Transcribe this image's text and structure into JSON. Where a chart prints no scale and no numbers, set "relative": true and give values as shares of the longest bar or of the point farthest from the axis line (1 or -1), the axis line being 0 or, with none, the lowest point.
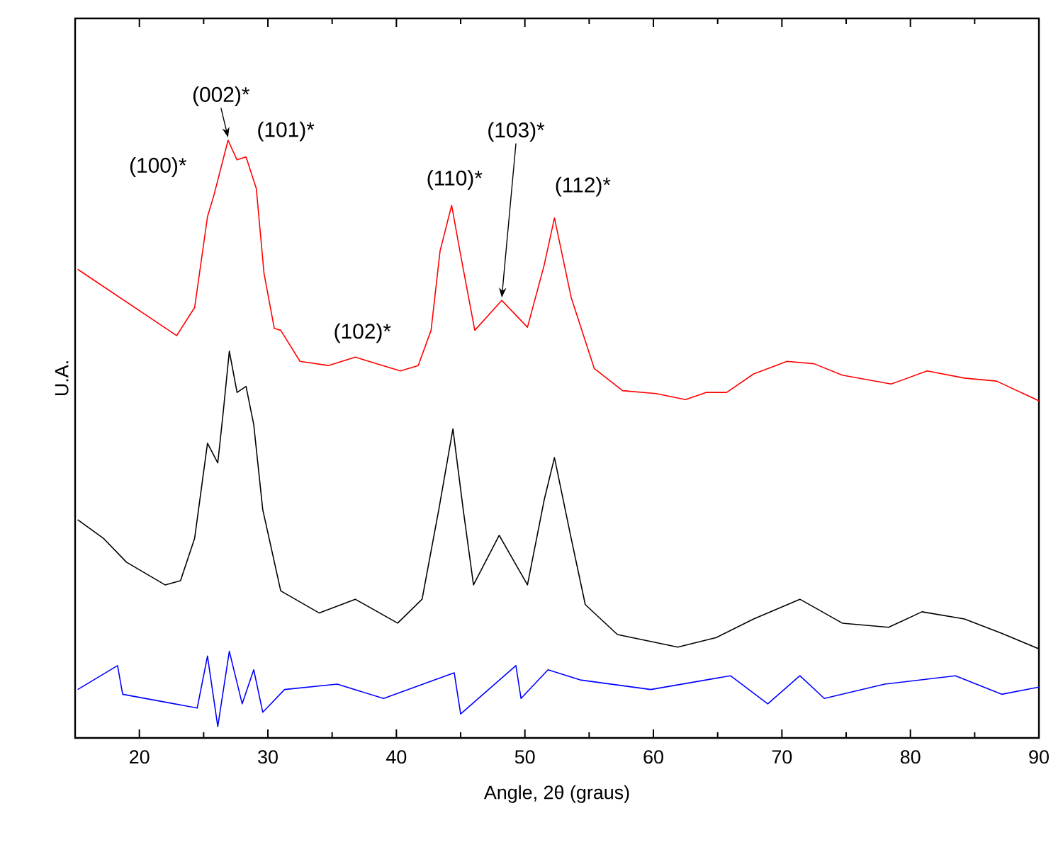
{
  "chart_data": {
    "type": "line",
    "relative": true,
    "xlabel": "Angle, 2θ (graus)",
    "ylabel": "U.A.",
    "xlim": [
      15,
      90
    ],
    "xticks": [
      20,
      30,
      40,
      50,
      60,
      70,
      80,
      90
    ],
    "series": [
      {
        "color": "#ff0000",
        "x": [
          15.2,
          22.9,
          24.3,
          25.3,
          25.8,
          26.9,
          27.6,
          28.3,
          29.1,
          29.7,
          30.5,
          31.0,
          32.5,
          34.7,
          36.8,
          40.3,
          41.7,
          42.7,
          43.4,
          44.3,
          45.0,
          46.1,
          48.2,
          50.2,
          51.5,
          52.3,
          53.6,
          55.4,
          57.6,
          60.2,
          62.5,
          64.1,
          65.7,
          67.8,
          70.4,
          72.5,
          74.7,
          78.5,
          81.3,
          84.2,
          86.7,
          90.0
        ],
        "values": [
          0.784,
          0.673,
          0.72,
          0.872,
          0.908,
          1.0,
          0.967,
          0.972,
          0.919,
          0.777,
          0.685,
          0.682,
          0.63,
          0.623,
          0.637,
          0.614,
          0.623,
          0.682,
          0.815,
          0.891,
          0.808,
          0.682,
          0.732,
          0.687,
          0.791,
          0.87,
          0.737,
          0.618,
          0.581,
          0.576,
          0.566,
          0.578,
          0.578,
          0.609,
          0.63,
          0.626,
          0.607,
          0.592,
          0.614,
          0.602,
          0.597,
          0.564
        ]
      },
      {
        "color": "#000000",
        "x": [
          15.2,
          17.2,
          19.0,
          22.0,
          23.2,
          24.3,
          25.3,
          26.1,
          26.5,
          27.0,
          27.6,
          28.3,
          28.9,
          29.6,
          31.0,
          34.0,
          36.8,
          40.1,
          42.0,
          43.3,
          44.4,
          45.2,
          46.0,
          48.0,
          50.2,
          51.5,
          52.3,
          53.6,
          54.7,
          57.2,
          61.9,
          64.9,
          67.8,
          71.4,
          74.7,
          78.3,
          80.9,
          84.2,
          87.1,
          90.0
        ],
        "values": [
          0.365,
          0.334,
          0.294,
          0.256,
          0.263,
          0.334,
          0.493,
          0.46,
          0.54,
          0.647,
          0.578,
          0.588,
          0.524,
          0.382,
          0.246,
          0.209,
          0.232,
          0.192,
          0.232,
          0.382,
          0.517,
          0.382,
          0.256,
          0.339,
          0.256,
          0.398,
          0.469,
          0.334,
          0.223,
          0.173,
          0.152,
          0.168,
          0.199,
          0.232,
          0.192,
          0.185,
          0.211,
          0.199,
          0.175,
          0.149
        ]
      },
      {
        "color": "#0000ff",
        "x": [
          15.2,
          18.3,
          18.7,
          24.5,
          25.3,
          26.1,
          27.0,
          28.0,
          28.9,
          29.6,
          31.3,
          35.4,
          39.0,
          44.5,
          45.0,
          49.3,
          49.7,
          51.8,
          54.3,
          59.8,
          66.0,
          68.9,
          71.4,
          73.3,
          78.0,
          83.5,
          87.1,
          90.0
        ],
        "values": [
          0.081,
          0.121,
          0.073,
          0.05,
          0.137,
          0.019,
          0.145,
          0.057,
          0.114,
          0.043,
          0.081,
          0.09,
          0.066,
          0.109,
          0.04,
          0.121,
          0.066,
          0.114,
          0.097,
          0.081,
          0.104,
          0.057,
          0.104,
          0.066,
          0.09,
          0.104,
          0.073,
          0.085
        ]
      }
    ],
    "annotations": [
      {
        "text": "(100)*",
        "x": 25.3,
        "y": 0.872
      },
      {
        "text": "(002)*",
        "x": 26.9,
        "y": 1.0
      },
      {
        "text": "(101)*",
        "x": 28.3,
        "y": 0.972
      },
      {
        "text": "(110)*",
        "x": 44.3,
        "y": 0.891
      },
      {
        "text": "(103)*",
        "x": 48.2,
        "y": 0.732
      },
      {
        "text": "(112)*",
        "x": 52.3,
        "y": 0.87
      },
      {
        "text": "(102)*",
        "x": 36.8,
        "y": 0.637
      }
    ]
  }
}
